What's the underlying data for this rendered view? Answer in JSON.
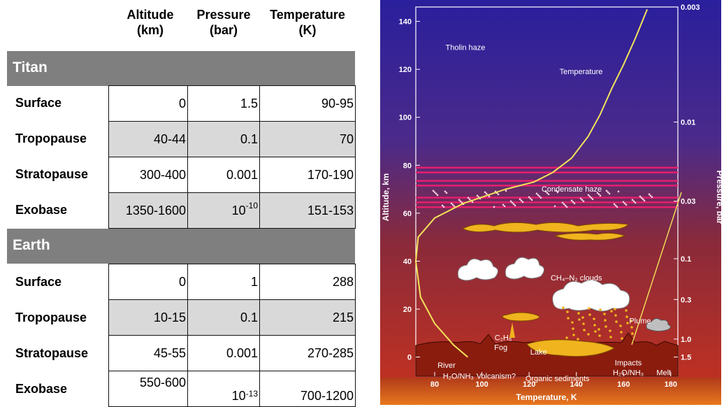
{
  "table": {
    "headers": [
      {
        "line1": "Altitude",
        "line2": "(km)"
      },
      {
        "line1": "Pressure",
        "line2": "(bar)"
      },
      {
        "line1": "Temperature",
        "line2": "(K)"
      }
    ],
    "groups": [
      {
        "name": "Titan",
        "rows": [
          {
            "label": "Surface",
            "altitude": "0",
            "pressure": "1.5",
            "pressure_exp": "",
            "temperature": "90-95"
          },
          {
            "label": "Tropopause",
            "altitude": "40-44",
            "pressure": "0.1",
            "pressure_exp": "",
            "temperature": "70"
          },
          {
            "label": "Stratopause",
            "altitude": "300-400",
            "pressure": "0.001",
            "pressure_exp": "",
            "temperature": "170-190"
          },
          {
            "label": "Exobase",
            "altitude": "1350-1600",
            "pressure": "10",
            "pressure_exp": "-10",
            "temperature": "151-153"
          }
        ]
      },
      {
        "name": "Earth",
        "rows": [
          {
            "label": "Surface",
            "altitude": "0",
            "pressure": "1",
            "pressure_exp": "",
            "temperature": "288"
          },
          {
            "label": "Tropopause",
            "altitude": "10-15",
            "pressure": "0.1",
            "pressure_exp": "",
            "temperature": "215"
          },
          {
            "label": "Stratopause",
            "altitude": "45-55",
            "pressure": "0.001",
            "pressure_exp": "",
            "temperature": "270-285"
          },
          {
            "label": "Exobase",
            "altitude": "550-600",
            "pressure": "10",
            "pressure_exp": "-13",
            "temperature": "700-1200"
          }
        ]
      }
    ]
  },
  "chart_data": {
    "type": "line",
    "xlabel": "Temperature, K",
    "ylabel": "Altitude, km",
    "y2label": "Pressure, bar",
    "xlim": [
      72,
      183
    ],
    "ylim": [
      -8,
      146
    ],
    "x_ticks": [
      80,
      100,
      120,
      140,
      160,
      180
    ],
    "y_ticks": [
      0,
      20,
      40,
      60,
      80,
      100,
      120,
      140
    ],
    "y2_ticks": [
      {
        "label": "0.003",
        "altitude": 146
      },
      {
        "label": "0.01",
        "altitude": 98
      },
      {
        "label": "0.03",
        "altitude": 65
      },
      {
        "label": "0.1",
        "altitude": 41
      },
      {
        "label": "0.3",
        "altitude": 24
      },
      {
        "label": "1.0",
        "altitude": 7.5
      },
      {
        "label": "1.5",
        "altitude": 0
      }
    ],
    "series": [
      {
        "name": "Temperature",
        "x": [
          94,
          88,
          80,
          74,
          72,
          73,
          80,
          92,
          110,
          122,
          130,
          138,
          145,
          150,
          155,
          160,
          165,
          170
        ],
        "y": [
          0,
          5,
          14,
          25,
          40,
          50,
          58,
          64,
          70,
          73,
          77,
          83,
          92,
          101,
          112,
          122,
          133,
          145
        ]
      }
    ],
    "condensate_lines_km": [
      62.5,
      64.5,
      66.5,
      71.5,
      73.5,
      77,
      79
    ],
    "annotations": [
      {
        "text": "Tholin haze",
        "x": 93,
        "y": 128
      },
      {
        "text": "Temperature",
        "x": 142,
        "y": 118
      },
      {
        "text": "Condensate haze",
        "x": 138,
        "y": 69
      },
      {
        "text": "CH₄–N₂ clouds",
        "x": 140,
        "y": 32
      },
      {
        "text": "Plume",
        "x": 167,
        "y": 14
      },
      {
        "text": "C₂H₆",
        "x": 109,
        "y": 7
      },
      {
        "text": "Fog",
        "x": 108,
        "y": 3
      },
      {
        "text": "Lake",
        "x": 124,
        "y": 1
      },
      {
        "text": "River",
        "x": 85,
        "y": -4.5
      },
      {
        "text": "H₂O/NH₃",
        "x": 90,
        "y": -9
      },
      {
        "text": "Volcanism?",
        "x": 106,
        "y": -9
      },
      {
        "text": "Organic sediments",
        "x": 132,
        "y": -10
      },
      {
        "text": "Impacts",
        "x": 162,
        "y": -3.5
      },
      {
        "text": "H₂O/NH₃",
        "x": 162,
        "y": -7.5
      },
      {
        "text": "Melt",
        "x": 177,
        "y": -7.5
      }
    ],
    "grid": false,
    "colors": {
      "curve": "#f2e35a",
      "haze_lines": "#e61e6e",
      "cloud_yellow": "#f0b41e",
      "sky_top": "#2a1f9c",
      "sky_bottom": "#c8321e"
    }
  }
}
